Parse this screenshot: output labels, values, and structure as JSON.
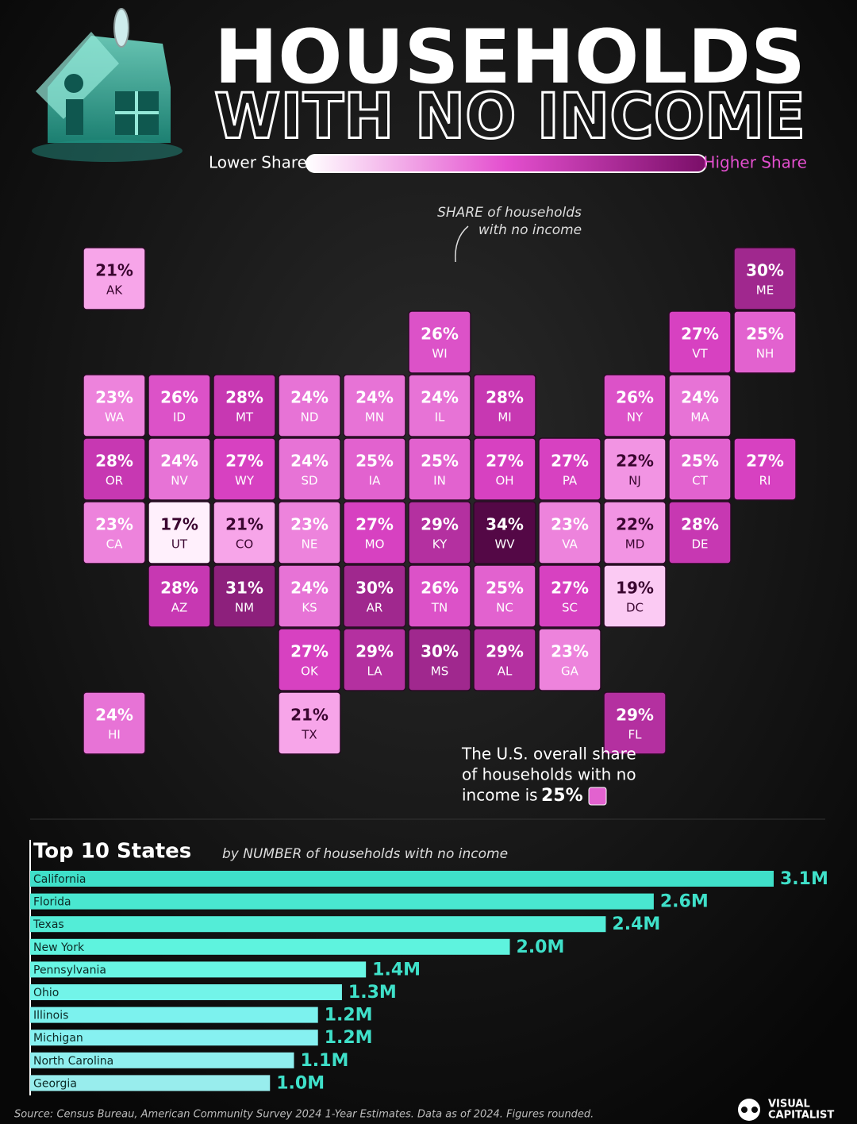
{
  "header": {
    "title_line1": "HOUSEHOLDS",
    "title_line2": "WITH NO INCOME",
    "legend_low": "Lower Share",
    "legend_high": "Higher Share"
  },
  "map": {
    "annotation_line1": "SHARE of households",
    "annotation_line2": "with no income",
    "states": [
      {
        "abbr": "WA",
        "value": 23,
        "label": "23%"
      },
      {
        "abbr": "OR",
        "value": 28,
        "label": "28%"
      },
      {
        "abbr": "CA",
        "value": 23,
        "label": "23%"
      },
      {
        "abbr": "ID",
        "value": 26,
        "label": "26%"
      },
      {
        "abbr": "NV",
        "value": 24,
        "label": "24%"
      },
      {
        "abbr": "UT",
        "value": 17,
        "label": "17%"
      },
      {
        "abbr": "AZ",
        "value": 28,
        "label": "28%"
      },
      {
        "abbr": "MT",
        "value": 28,
        "label": "28%"
      },
      {
        "abbr": "WY",
        "value": 27,
        "label": "27%"
      },
      {
        "abbr": "CO",
        "value": 21,
        "label": "21%"
      },
      {
        "abbr": "NM",
        "value": 31,
        "label": "31%"
      },
      {
        "abbr": "ND",
        "value": 24,
        "label": "24%"
      },
      {
        "abbr": "SD",
        "value": 24,
        "label": "24%"
      },
      {
        "abbr": "NE",
        "value": 23,
        "label": "23%"
      },
      {
        "abbr": "KS",
        "value": 24,
        "label": "24%"
      },
      {
        "abbr": "OK",
        "value": 27,
        "label": "27%"
      },
      {
        "abbr": "TX",
        "value": 21,
        "label": "21%"
      },
      {
        "abbr": "MN",
        "value": 24,
        "label": "24%"
      },
      {
        "abbr": "IA",
        "value": 25,
        "label": "25%"
      },
      {
        "abbr": "MO",
        "value": 27,
        "label": "27%"
      },
      {
        "abbr": "AR",
        "value": 30,
        "label": "30%"
      },
      {
        "abbr": "LA",
        "value": 29,
        "label": "29%"
      },
      {
        "abbr": "WI",
        "value": 26,
        "label": "26%"
      },
      {
        "abbr": "IL",
        "value": 24,
        "label": "24%"
      },
      {
        "abbr": "MS",
        "value": 30,
        "label": "30%"
      },
      {
        "abbr": "MI",
        "value": 28,
        "label": "28%"
      },
      {
        "abbr": "IN",
        "value": 25,
        "label": "25%"
      },
      {
        "abbr": "KY",
        "value": 29,
        "label": "29%"
      },
      {
        "abbr": "TN",
        "value": 26,
        "label": "26%"
      },
      {
        "abbr": "AL",
        "value": 29,
        "label": "29%"
      },
      {
        "abbr": "OH",
        "value": 27,
        "label": "27%"
      },
      {
        "abbr": "WV",
        "value": 34,
        "label": "34%"
      },
      {
        "abbr": "GA",
        "value": 23,
        "label": "23%"
      },
      {
        "abbr": "FL",
        "value": 29,
        "label": "29%"
      },
      {
        "abbr": "SC",
        "value": 27,
        "label": "27%"
      },
      {
        "abbr": "NC",
        "value": 25,
        "label": "25%"
      },
      {
        "abbr": "VA",
        "value": 23,
        "label": "23%"
      },
      {
        "abbr": "PA",
        "value": 27,
        "label": "27%"
      },
      {
        "abbr": "NY",
        "value": 26,
        "label": "26%"
      },
      {
        "abbr": "ME",
        "value": 30,
        "label": "30%"
      },
      {
        "abbr": "NH",
        "value": 25,
        "label": "25%"
      },
      {
        "abbr": "VT",
        "value": 27,
        "label": "27%"
      },
      {
        "abbr": "MA",
        "value": 24,
        "label": "24%"
      },
      {
        "abbr": "RI",
        "value": 27,
        "label": "27%"
      },
      {
        "abbr": "CT",
        "value": 25,
        "label": "25%"
      },
      {
        "abbr": "NJ",
        "value": 22,
        "label": "22%"
      },
      {
        "abbr": "DE",
        "value": 28,
        "label": "28%"
      },
      {
        "abbr": "MD",
        "value": 22,
        "label": "22%"
      },
      {
        "abbr": "DC",
        "value": 19,
        "label": "19%"
      },
      {
        "abbr": "AK",
        "value": 21,
        "label": "21%"
      },
      {
        "abbr": "HI",
        "value": 24,
        "label": "24%"
      }
    ],
    "note_line1": "The U.S. overall share",
    "note_line2": "of households with no",
    "note_line3": "income is",
    "note_value": 25,
    "note_value_label": "25%"
  },
  "chart_data": {
    "type": "bar",
    "orientation": "horizontal",
    "title": "Top 10 States",
    "subtitle": "by NUMBER of households with no income",
    "categories": [
      "California",
      "Florida",
      "Texas",
      "New York",
      "Pennsylvania",
      "Ohio",
      "Illinois",
      "Michigan",
      "North Carolina",
      "Georgia"
    ],
    "values": [
      3.1,
      2.6,
      2.4,
      2.0,
      1.4,
      1.3,
      1.2,
      1.2,
      1.1,
      1.0
    ],
    "value_labels": [
      "3.1M",
      "2.6M",
      "2.4M",
      "2.0M",
      "1.4M",
      "1.3M",
      "1.2M",
      "1.2M",
      "1.1M",
      "1.0M"
    ],
    "color": "#3fe0c9"
  },
  "footer": {
    "source": "Source: Census Bureau, American Community Survey 2024 1-Year Estimates. Data as of 2024. Figures rounded.",
    "brand_line1": "VISUAL",
    "brand_line2": "CAPITALIST"
  }
}
